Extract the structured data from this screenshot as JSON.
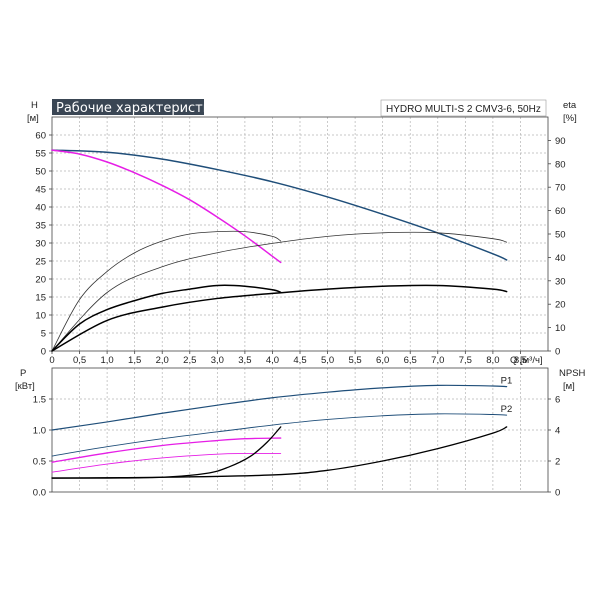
{
  "chart_data": {
    "title": "Рабочие характеристики",
    "model": "HYDRO MULTI-S 2 CMV3-6, 50Hz",
    "colors": {
      "navy": "#1f4e79",
      "magenta": "#e61ee6",
      "black": "#000000",
      "thin": "#333333",
      "title_bg": "#3a4654"
    },
    "top_panel": {
      "type": "line",
      "left_axis": {
        "label": "H",
        "unit": "[м]",
        "ylim": [
          0,
          65
        ],
        "ticks": [
          "0",
          "5",
          "10",
          "15",
          "20",
          "25",
          "30",
          "35",
          "40",
          "45",
          "50",
          "55",
          "60"
        ]
      },
      "right_axis": {
        "label": "eta",
        "unit": "[%]",
        "ylim": [
          0,
          100
        ],
        "ticks": [
          "0",
          "10",
          "20",
          "30",
          "40",
          "50",
          "60",
          "70",
          "80",
          "90"
        ]
      },
      "x_axis": {
        "label": "Q",
        "unit": "[м³/ч]",
        "xlim": [
          0,
          9
        ],
        "ticks": [
          "0",
          "0.5",
          "1.0",
          "1.5",
          "2.0",
          "2.5",
          "3.0",
          "3.5",
          "4.0",
          "4.5",
          "5.0",
          "5.5",
          "6.0",
          "6.5",
          "7.0",
          "7.5",
          "8.0",
          "8.5"
        ]
      },
      "grid": true,
      "series": [
        {
          "color": "navy",
          "width": 1.5,
          "axis": "left",
          "x": [
            0,
            1,
            2,
            3,
            4,
            5,
            6,
            7,
            8,
            8.25
          ],
          "y": [
            55.8,
            55.2,
            53.3,
            50.4,
            47.0,
            42.8,
            38.0,
            32.8,
            27.0,
            25.3
          ]
        },
        {
          "color": "magenta",
          "width": 1.5,
          "axis": "left",
          "x": [
            0,
            0.5,
            1,
            1.5,
            2,
            2.5,
            3,
            3.5,
            4,
            4.15
          ],
          "y": [
            55.8,
            54.7,
            52.5,
            49.5,
            46.0,
            42.0,
            37.2,
            32.0,
            26.3,
            24.6
          ]
        },
        {
          "color": "thin",
          "width": 0.8,
          "axis": "right",
          "x": [
            0,
            0.5,
            1,
            1.5,
            2,
            2.5,
            3,
            3.5,
            4,
            4.15
          ],
          "y": [
            0,
            22,
            34,
            42,
            47,
            50,
            51,
            51,
            49,
            47
          ]
        },
        {
          "color": "thin",
          "width": 0.8,
          "axis": "right",
          "x": [
            0,
            1,
            2,
            3,
            4,
            5,
            6,
            7,
            8,
            8.25
          ],
          "y": [
            0,
            25,
            36,
            42,
            46,
            49,
            50.5,
            50.5,
            48,
            46.5
          ]
        },
        {
          "color": "black",
          "width": 1.5,
          "axis": "left",
          "x": [
            0,
            0.5,
            1,
            1.5,
            2,
            2.5,
            3,
            3.5,
            4,
            4.15
          ],
          "y": [
            0,
            7.5,
            11.5,
            14.0,
            16.0,
            17.2,
            18.2,
            18.0,
            17.0,
            16.3
          ]
        },
        {
          "color": "black",
          "width": 1.5,
          "axis": "left",
          "x": [
            0,
            1,
            2,
            3,
            4,
            5,
            6,
            7,
            8,
            8.25
          ],
          "y": [
            0,
            8.5,
            12.2,
            14.6,
            16.0,
            17.2,
            18.0,
            18.2,
            17.2,
            16.5
          ]
        }
      ]
    },
    "bottom_panel": {
      "type": "line",
      "left_axis": {
        "label": "P",
        "unit": "[кВт]",
        "ylim": [
          0,
          2
        ],
        "ticks": [
          "0.0",
          "0.5",
          "1.0",
          "1.5"
        ]
      },
      "right_axis": {
        "label": "NPSH",
        "unit": "[м]",
        "ylim": [
          0,
          8
        ],
        "ticks": [
          "0",
          "2",
          "4",
          "6"
        ]
      },
      "x_axis": {
        "xlim": [
          0,
          9
        ]
      },
      "grid": true,
      "series": [
        {
          "name": "P1",
          "color": "navy",
          "width": 1.2,
          "axis": "left",
          "x": [
            0,
            1,
            2,
            3,
            4,
            5,
            6,
            7,
            8,
            8.25
          ],
          "y": [
            1.0,
            1.13,
            1.27,
            1.4,
            1.52,
            1.61,
            1.68,
            1.72,
            1.71,
            1.7
          ]
        },
        {
          "name": "P2",
          "color": "navy",
          "width": 0.9,
          "axis": "left",
          "x": [
            0,
            1,
            2,
            3,
            4,
            5,
            6,
            7,
            8,
            8.25
          ],
          "y": [
            0.58,
            0.73,
            0.86,
            0.97,
            1.08,
            1.17,
            1.23,
            1.26,
            1.25,
            1.24
          ]
        },
        {
          "color": "magenta",
          "width": 1.3,
          "axis": "left",
          "x": [
            0,
            1,
            2,
            3,
            3.5,
            4.15
          ],
          "y": [
            0.48,
            0.63,
            0.75,
            0.83,
            0.86,
            0.87
          ]
        },
        {
          "color": "magenta",
          "width": 0.9,
          "axis": "left",
          "x": [
            0,
            1,
            2,
            3,
            3.5,
            4.15
          ],
          "y": [
            0.32,
            0.45,
            0.55,
            0.61,
            0.62,
            0.62
          ]
        },
        {
          "color": "black",
          "width": 1.3,
          "axis": "right",
          "x": [
            0,
            1,
            2,
            2.8,
            3.2,
            3.6,
            3.9,
            4.15
          ],
          "y": [
            0.9,
            0.9,
            0.95,
            1.2,
            1.6,
            2.3,
            3.2,
            4.2
          ]
        },
        {
          "color": "black",
          "width": 1.3,
          "axis": "right",
          "x": [
            0,
            2,
            4,
            5,
            6,
            7,
            8,
            8.25
          ],
          "y": [
            0.9,
            0.95,
            1.1,
            1.4,
            2.0,
            2.8,
            3.8,
            4.2
          ]
        }
      ]
    }
  }
}
